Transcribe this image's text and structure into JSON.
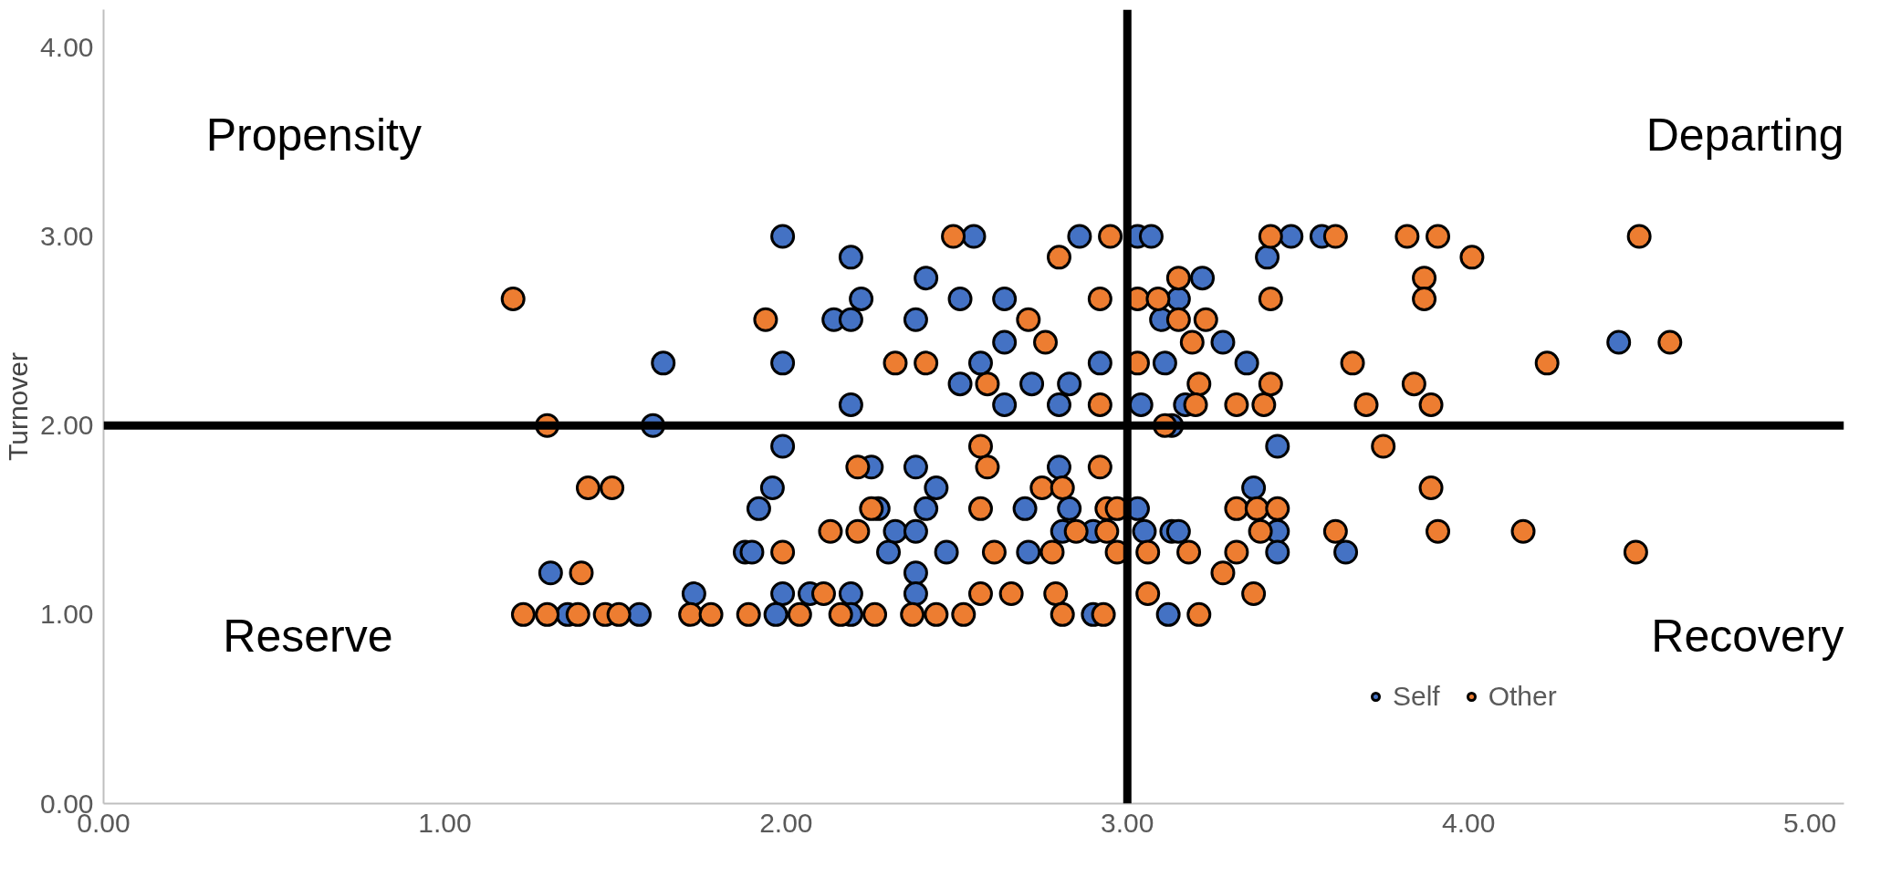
{
  "chart_data": {
    "type": "scatter",
    "ylabel": "Turnover",
    "xlim": [
      0,
      5.1
    ],
    "ylim": [
      0,
      4.2
    ],
    "xticks": [
      {
        "value": 0,
        "label": "0.00"
      },
      {
        "value": 1,
        "label": "1.00"
      },
      {
        "value": 2,
        "label": "2.00"
      },
      {
        "value": 3,
        "label": "3.00"
      },
      {
        "value": 4,
        "label": "4.00"
      },
      {
        "value": 5,
        "label": "5.00"
      }
    ],
    "yticks": [
      {
        "value": 0,
        "label": "0.00"
      },
      {
        "value": 1,
        "label": "1.00"
      },
      {
        "value": 2,
        "label": "2.00"
      },
      {
        "value": 3,
        "label": "3.00"
      },
      {
        "value": 4,
        "label": "4.00"
      }
    ],
    "grid": false,
    "legend": "bottom right",
    "marker": "circle",
    "ref_lines": [
      {
        "axis": "x",
        "value": 3,
        "color": "#000000"
      },
      {
        "axis": "y",
        "value": 2,
        "color": "#000000"
      }
    ],
    "annotations": [
      "Propensity",
      "Departing",
      "Reserve",
      "Recovery"
    ],
    "series": [
      {
        "name": "Self",
        "color": "#4472c4",
        "x": [
          1.99,
          1.64,
          1.61,
          1.31,
          1.36,
          1.57,
          1.99,
          1.99,
          1.96,
          1.92,
          1.88,
          1.9,
          1.73,
          1.99,
          1.97,
          2.07,
          2.19,
          2.22,
          2.14,
          2.19,
          2.19,
          2.19,
          2.19,
          2.25,
          2.27,
          2.3,
          2.32,
          2.41,
          2.38,
          2.38,
          2.38,
          2.38,
          2.38,
          2.44,
          2.41,
          2.47,
          2.51,
          2.55,
          2.51,
          2.57,
          2.64,
          2.64,
          2.64,
          2.72,
          2.7,
          2.71,
          2.83,
          2.8,
          2.8,
          2.83,
          2.81,
          2.86,
          2.92,
          2.9,
          2.9,
          3.03,
          3.07,
          3.04,
          3.03,
          3.05,
          3.1,
          3.11,
          3.13,
          3.13,
          3.12,
          3.15,
          3.17,
          3.15,
          3.22,
          3.28,
          3.35,
          3.37,
          3.41,
          3.44,
          3.44,
          3.44,
          3.48,
          3.57,
          3.64,
          4.44
        ],
        "values": [
          3.0,
          2.33,
          2.0,
          1.22,
          1.0,
          1.0,
          2.33,
          1.89,
          1.67,
          1.56,
          1.33,
          1.33,
          1.11,
          1.11,
          1.0,
          1.11,
          2.89,
          2.67,
          2.56,
          2.56,
          2.11,
          1.11,
          1.0,
          1.78,
          1.56,
          1.33,
          1.44,
          2.78,
          2.56,
          1.78,
          1.44,
          1.22,
          1.11,
          1.67,
          1.56,
          1.33,
          2.67,
          3.0,
          2.22,
          2.33,
          2.67,
          2.44,
          2.11,
          2.22,
          1.56,
          1.33,
          2.22,
          2.11,
          1.78,
          1.56,
          1.44,
          3.0,
          2.33,
          1.44,
          1.0,
          3.0,
          3.0,
          2.11,
          1.56,
          1.44,
          2.56,
          2.33,
          2.0,
          1.44,
          1.0,
          2.67,
          2.11,
          1.44,
          2.78,
          2.44,
          2.33,
          1.67,
          2.89,
          1.89,
          1.44,
          1.33,
          3.0,
          3.0,
          1.33,
          2.44
        ]
      },
      {
        "name": "Other",
        "color": "#ed7d31",
        "x": [
          1.2,
          1.3,
          1.23,
          1.3,
          1.39,
          1.47,
          1.51,
          1.4,
          1.42,
          1.49,
          1.72,
          1.78,
          1.89,
          1.94,
          1.99,
          2.04,
          2.11,
          2.13,
          2.16,
          2.21,
          2.21,
          2.26,
          2.25,
          2.32,
          2.37,
          2.41,
          2.44,
          2.49,
          2.52,
          2.57,
          2.57,
          2.57,
          2.59,
          2.59,
          2.61,
          2.66,
          2.71,
          2.76,
          2.75,
          2.78,
          2.79,
          2.8,
          2.81,
          2.81,
          2.85,
          2.93,
          2.95,
          2.92,
          2.92,
          2.92,
          2.94,
          2.97,
          2.94,
          2.97,
          3.03,
          3.03,
          3.06,
          3.06,
          3.09,
          3.11,
          3.15,
          3.15,
          3.19,
          3.21,
          3.2,
          3.18,
          3.21,
          3.23,
          3.32,
          3.28,
          3.32,
          3.32,
          3.37,
          3.38,
          3.39,
          3.4,
          3.42,
          3.42,
          3.42,
          3.44,
          3.61,
          3.61,
          3.66,
          3.7,
          3.75,
          3.82,
          3.84,
          3.87,
          3.87,
          3.89,
          3.89,
          3.91,
          3.91,
          4.01,
          4.16,
          4.23,
          4.5,
          4.49,
          4.59
        ],
        "values": [
          2.67,
          2.0,
          1.0,
          1.0,
          1.0,
          1.0,
          1.0,
          1.22,
          1.67,
          1.67,
          1.0,
          1.0,
          1.0,
          2.56,
          1.33,
          1.0,
          1.11,
          1.44,
          1.0,
          1.44,
          1.78,
          1.0,
          1.56,
          2.33,
          1.0,
          2.33,
          1.0,
          3.0,
          1.0,
          1.89,
          1.56,
          1.11,
          1.78,
          2.22,
          1.33,
          1.11,
          2.56,
          2.44,
          1.67,
          1.33,
          1.11,
          2.89,
          1.67,
          1.0,
          1.44,
          1.0,
          3.0,
          2.67,
          2.11,
          1.78,
          1.56,
          1.56,
          1.44,
          1.33,
          2.67,
          2.33,
          1.33,
          1.11,
          2.67,
          2.0,
          2.78,
          2.56,
          2.44,
          2.22,
          2.11,
          1.33,
          1.0,
          2.56,
          2.11,
          1.22,
          1.33,
          1.56,
          1.11,
          1.56,
          1.44,
          2.11,
          2.67,
          2.22,
          3.0,
          1.56,
          3.0,
          1.44,
          2.33,
          2.11,
          1.89,
          3.0,
          2.22,
          2.78,
          2.67,
          2.11,
          1.67,
          1.44,
          3.0,
          2.89,
          1.44,
          2.33,
          3.0,
          1.33,
          2.44
        ]
      }
    ]
  }
}
